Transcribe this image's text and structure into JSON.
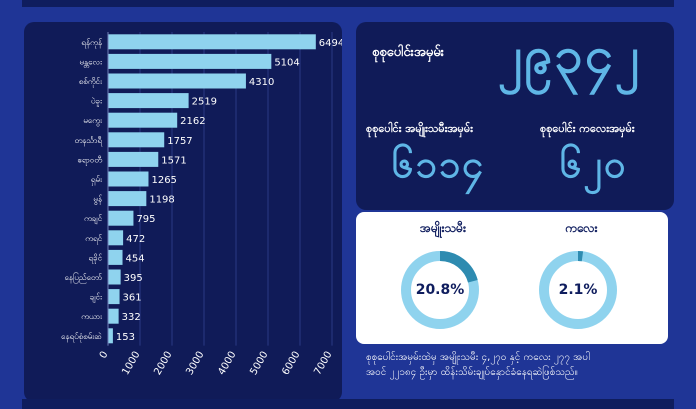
{
  "chart_data": {
    "type": "bar",
    "orientation": "horizontal",
    "categories": [
      "ရန်ကုန်",
      "မန္တလေး",
      "စစ်ကိုင်း",
      "ပဲခူး",
      "မကွေး",
      "တနင်္သာရီ",
      "ဧရာဝတီ",
      "ရှမ်း",
      "မွန်",
      "ကချင်",
      "ကရင်",
      "ရခိုင်",
      "နေပြည်တော်",
      "ချင်း",
      "ကယား",
      "နေရပ်စုံစမ်းဆဲ"
    ],
    "values": [
      6494,
      5104,
      4310,
      2519,
      2162,
      1757,
      1571,
      1265,
      1198,
      795,
      472,
      454,
      395,
      361,
      332,
      153
    ],
    "xlim": [
      0,
      7000
    ],
    "xticks": [
      "0",
      "1000",
      "2000",
      "3000",
      "4000",
      "5000",
      "6000",
      "7000"
    ],
    "bar_color": "#8fd3ee",
    "grid": true
  },
  "stats": {
    "total_label": "စုစုပေါင်းအမှမ်း",
    "total_value": "၂၉၃၄၂",
    "women_label": "စုစုပေါင်း အမျိုးသမီးအမှမ်း",
    "women_value": "၆၁၁၄",
    "children_label": "စုစုပေါင်း ကလေးအမှမ်း",
    "children_value": "၆၂၀",
    "accent_color": "#5fb6e6"
  },
  "donuts": [
    {
      "title": "အမျိုးသမီး",
      "value_text": "20.8%",
      "fraction": 0.208
    },
    {
      "title": "ကလေး",
      "value_text": "2.1%",
      "fraction": 0.021
    }
  ],
  "footer": {
    "line1": "စုစုပေါင်းအမှမ်းထဲမှ အမျိုးသမီး ၄,၂၇၀ နှင့် ကလေး ၂၇၇ အပါ",
    "line2": "အဝင် ၂၂၁၈၄ ဦးမှာ ထိန်းသိမ်းချုပ်နှောင်ခံနေရဆဲဖြစ်သည်။"
  }
}
